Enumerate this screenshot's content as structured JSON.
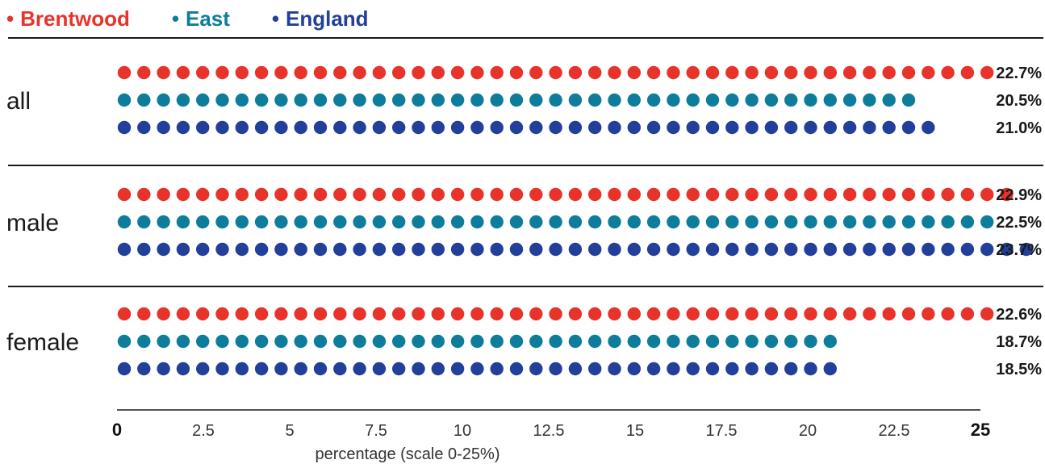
{
  "legend": [
    {
      "label": "Brentwood",
      "color": "#e8332a"
    },
    {
      "label": "East",
      "color": "#0e7d9c"
    },
    {
      "label": "England",
      "color": "#22409a"
    }
  ],
  "chart_data": {
    "type": "scatter",
    "style": "dot-row",
    "categories": [
      "all",
      "male",
      "female"
    ],
    "series": [
      {
        "name": "Brentwood",
        "color": "#e8332a",
        "values": [
          22.7,
          22.9,
          22.6
        ],
        "labels": [
          "22.7%",
          "22.9%",
          "22.6%"
        ]
      },
      {
        "name": "East",
        "color": "#0e7d9c",
        "values": [
          20.5,
          22.5,
          18.7
        ],
        "labels": [
          "20.5%",
          "22.5%",
          "18.7%"
        ]
      },
      {
        "name": "England",
        "color": "#22409a",
        "values": [
          21.0,
          23.7,
          18.5
        ],
        "labels": [
          "21.0%",
          "23.7%",
          "18.5%"
        ]
      }
    ],
    "x_ticks": [
      "0",
      "2.5",
      "5",
      "7.5",
      "10",
      "12.5",
      "15",
      "17.5",
      "20",
      "22.5",
      "25"
    ],
    "xlabel": "percentage (scale 0-25%)",
    "xlim": [
      0,
      25
    ]
  }
}
